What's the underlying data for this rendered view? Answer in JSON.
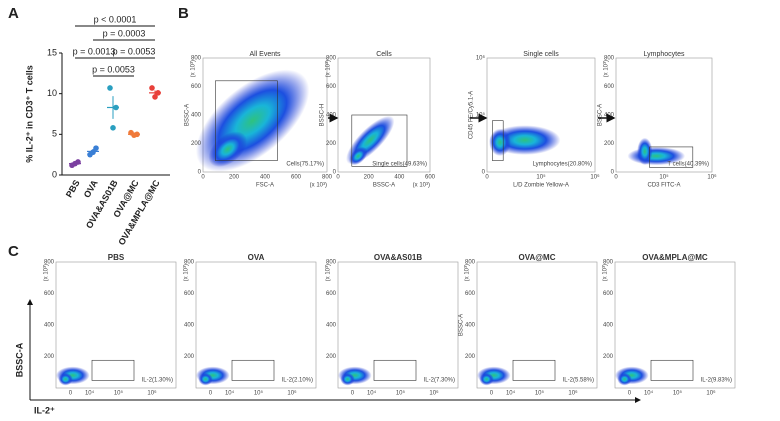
{
  "panel_labels": [
    "A",
    "B",
    "C"
  ],
  "chart_data": {
    "type": "dot",
    "y_label": "% IL-2⁺ in CD3⁺ T cells",
    "categories": [
      "PBS",
      "OVA",
      "OVA&AS01B",
      "OVA@MC",
      "OVA&MPLA@MC"
    ],
    "colors": [
      "#7b3fa0",
      "#3a7fd5",
      "#2a9fc0",
      "#f07a3a",
      "#e8403a"
    ],
    "points": [
      [
        1.2,
        1.6,
        1.4
      ],
      [
        2.5,
        3.3,
        2.8
      ],
      [
        10.7,
        8.3,
        5.8
      ],
      [
        5.2,
        5.0,
        4.9
      ],
      [
        10.7,
        10.1,
        9.6
      ]
    ],
    "means": [
      1.4,
      2.9,
      8.3,
      5.0,
      10.1
    ],
    "sems": [
      0.1,
      0.3,
      1.4,
      0.1,
      0.3
    ],
    "ylim": [
      0,
      15
    ],
    "yticks": [
      0,
      5,
      10,
      15
    ],
    "annotations": [
      "p < 0.0001",
      "p = 0.0003",
      "p = 0.0013",
      "p = 0.0053",
      "p = 0.0053"
    ]
  },
  "gating": [
    {
      "title": "All Events",
      "x_label": "FSC-A",
      "y_label": "BSSC-A",
      "gate_label": "Cells(75.17%)",
      "x_unit": "(x 10³)",
      "y_unit": "(x 10³)",
      "xticks": [
        "0",
        "200",
        "400",
        "600",
        "800"
      ],
      "yticks": [
        "0",
        "200",
        "400",
        "600",
        "800"
      ]
    },
    {
      "title": "Cells",
      "x_label": "BSSC-A",
      "y_label": "BSSC-H",
      "gate_label": "Single cells(49.63%)",
      "x_unit": "(x 10³)",
      "y_unit": "(x 10³)",
      "xticks": [
        "0",
        "200",
        "400",
        "600"
      ],
      "yticks": [
        "0",
        "200",
        "400",
        "600",
        "800"
      ]
    },
    {
      "title": "Single cells",
      "x_label": "L/D Zombie Yellow-A",
      "y_label": "CD45 PE/Cy5.1-A",
      "gate_label": "Lymphocytes(20.80%)",
      "xticks": [
        "0",
        "10⁵",
        "10⁶"
      ],
      "yticks": [
        "0",
        "10⁵",
        "10⁶"
      ]
    },
    {
      "title": "Lymphocytes",
      "x_label": "CD3 FITC-A",
      "y_label": "BSSC-A",
      "gate_label": "T cells(40.39%)",
      "y_unit": "(x 10³)",
      "xticks": [
        "0",
        "10⁵",
        "10⁶"
      ],
      "yticks": [
        "0",
        "200",
        "400",
        "600",
        "800"
      ]
    }
  ],
  "il2": {
    "y_label": "BSSC-A",
    "x_label": "IL-2⁺",
    "y_unit": "(x 10³)",
    "xticks": [
      "0",
      "10⁴",
      "10⁵",
      "10⁶"
    ],
    "yticks": [
      "200",
      "400",
      "600",
      "800"
    ],
    "plots": [
      {
        "title": "PBS",
        "gate_label": "IL-2(1.30%)"
      },
      {
        "title": "OVA",
        "gate_label": "IL-2(2.10%)"
      },
      {
        "title": "OVA&AS01B",
        "gate_label": "IL-2(7.30%)"
      },
      {
        "title": "OVA@MC",
        "gate_label": "IL-2(5.58%)"
      },
      {
        "title": "OVA&MPLA@MC",
        "gate_label": "IL-2(9.83%)"
      }
    ]
  }
}
